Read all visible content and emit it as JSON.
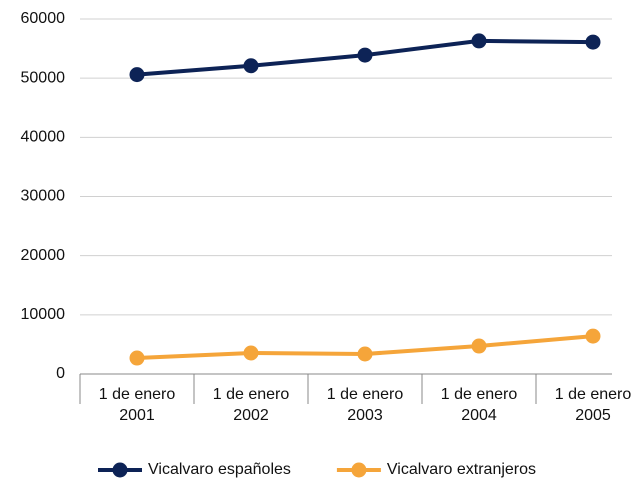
{
  "chart_data": {
    "type": "line",
    "categories": [
      "1 de enero 2001",
      "1 de enero 2002",
      "1 de enero 2003",
      "1 de enero 2004",
      "1 de enero 2005"
    ],
    "series": [
      {
        "name": "Vicalvaro españoles",
        "color": "#0d2356",
        "values": [
          50600,
          52100,
          53900,
          56300,
          56100
        ]
      },
      {
        "name": "Vicalvaro extranjeros",
        "color": "#f5a53a",
        "values": [
          2700,
          3550,
          3380,
          4730,
          6400
        ]
      }
    ],
    "ylim": [
      0,
      60000
    ],
    "yticks": [
      0,
      10000,
      20000,
      30000,
      40000,
      50000,
      60000
    ],
    "grid": true,
    "legend": "bottom"
  }
}
